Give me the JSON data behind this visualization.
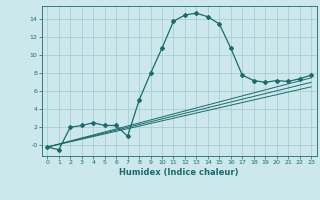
{
  "xlabel": "Humidex (Indice chaleur)",
  "ylabel": "",
  "bg_color": "#cde8ec",
  "grid_color": "#aacdd4",
  "line_color": "#1a6b6b",
  "xlim": [
    -0.5,
    23.5
  ],
  "ylim": [
    -1.2,
    15.5
  ],
  "xticks": [
    0,
    1,
    2,
    3,
    4,
    5,
    6,
    7,
    8,
    9,
    10,
    11,
    12,
    13,
    14,
    15,
    16,
    17,
    18,
    19,
    20,
    21,
    22,
    23
  ],
  "yticks": [
    0,
    2,
    4,
    6,
    8,
    10,
    12,
    14
  ],
  "curve1_x": [
    0,
    1,
    2,
    3,
    4,
    5,
    6,
    7,
    8,
    9,
    10,
    11,
    12,
    13,
    14,
    15,
    16,
    17,
    18,
    19,
    20,
    21,
    22,
    23
  ],
  "curve1_y": [
    -0.2,
    -0.5,
    2.0,
    2.2,
    2.5,
    2.2,
    2.2,
    1.0,
    5.0,
    8.0,
    10.8,
    13.8,
    14.5,
    14.7,
    14.3,
    13.5,
    10.8,
    7.8,
    7.2,
    7.0,
    7.2,
    7.1,
    7.4,
    7.8
  ],
  "line1_x": [
    0,
    23
  ],
  "line1_y": [
    -0.2,
    7.5
  ],
  "line2_x": [
    0,
    23
  ],
  "line2_y": [
    -0.2,
    7.0
  ],
  "line3_x": [
    0,
    23
  ],
  "line3_y": [
    -0.2,
    6.5
  ]
}
